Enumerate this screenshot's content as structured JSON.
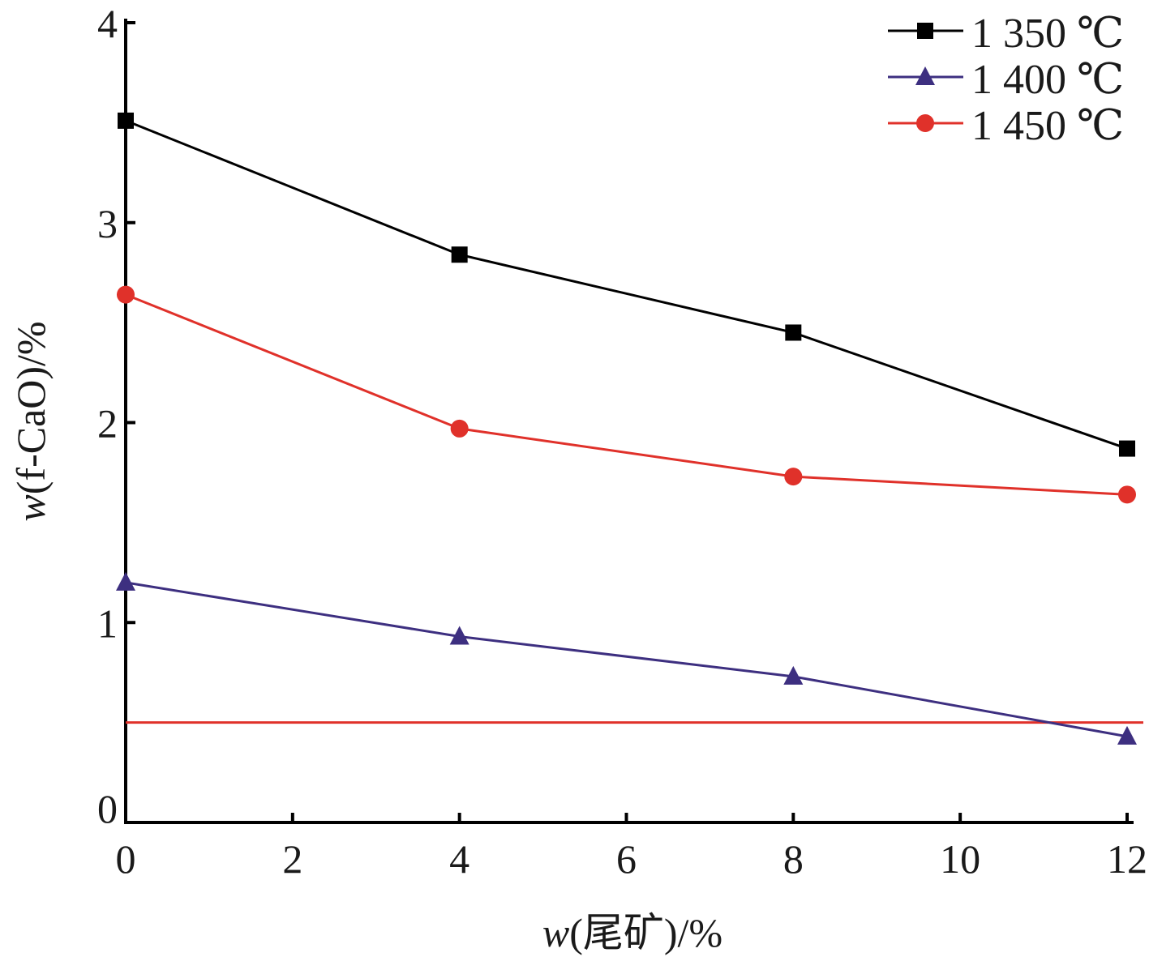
{
  "chart_data": {
    "type": "line",
    "title": "",
    "xlabel": "w(尾矿)/%",
    "xlabel_italic": "w",
    "xlabel_rest": "(尾矿)/%",
    "ylabel": "w(f-CaO)/%",
    "ylabel_italic": "w",
    "ylabel_rest": "(f-CaO)/%",
    "xlim": [
      0,
      12
    ],
    "ylim": [
      0,
      4
    ],
    "xticks": [
      "0",
      "2",
      "4",
      "6",
      "8",
      "10",
      "12"
    ],
    "yticks": [
      "0",
      "1",
      "2",
      "3",
      "4"
    ],
    "legend_position": "top-right",
    "series": [
      {
        "name": "1 350 ℃",
        "color": "#000000",
        "marker": "square",
        "x": [
          0,
          4,
          8,
          12
        ],
        "values": [
          3.51,
          2.84,
          2.45,
          1.87
        ]
      },
      {
        "name": "1 400 ℃",
        "color": "#3d2f80",
        "marker": "triangle",
        "x": [
          0,
          4,
          8,
          12
        ],
        "values": [
          1.2,
          0.93,
          0.73,
          0.43
        ]
      },
      {
        "name": "1 450 ℃",
        "color": "#e0312a",
        "marker": "circle",
        "x": [
          0,
          4,
          8,
          12
        ],
        "values": [
          2.64,
          1.97,
          1.73,
          1.64
        ]
      }
    ],
    "reference_line": {
      "y": 0.5,
      "color": "#e0312a"
    }
  }
}
